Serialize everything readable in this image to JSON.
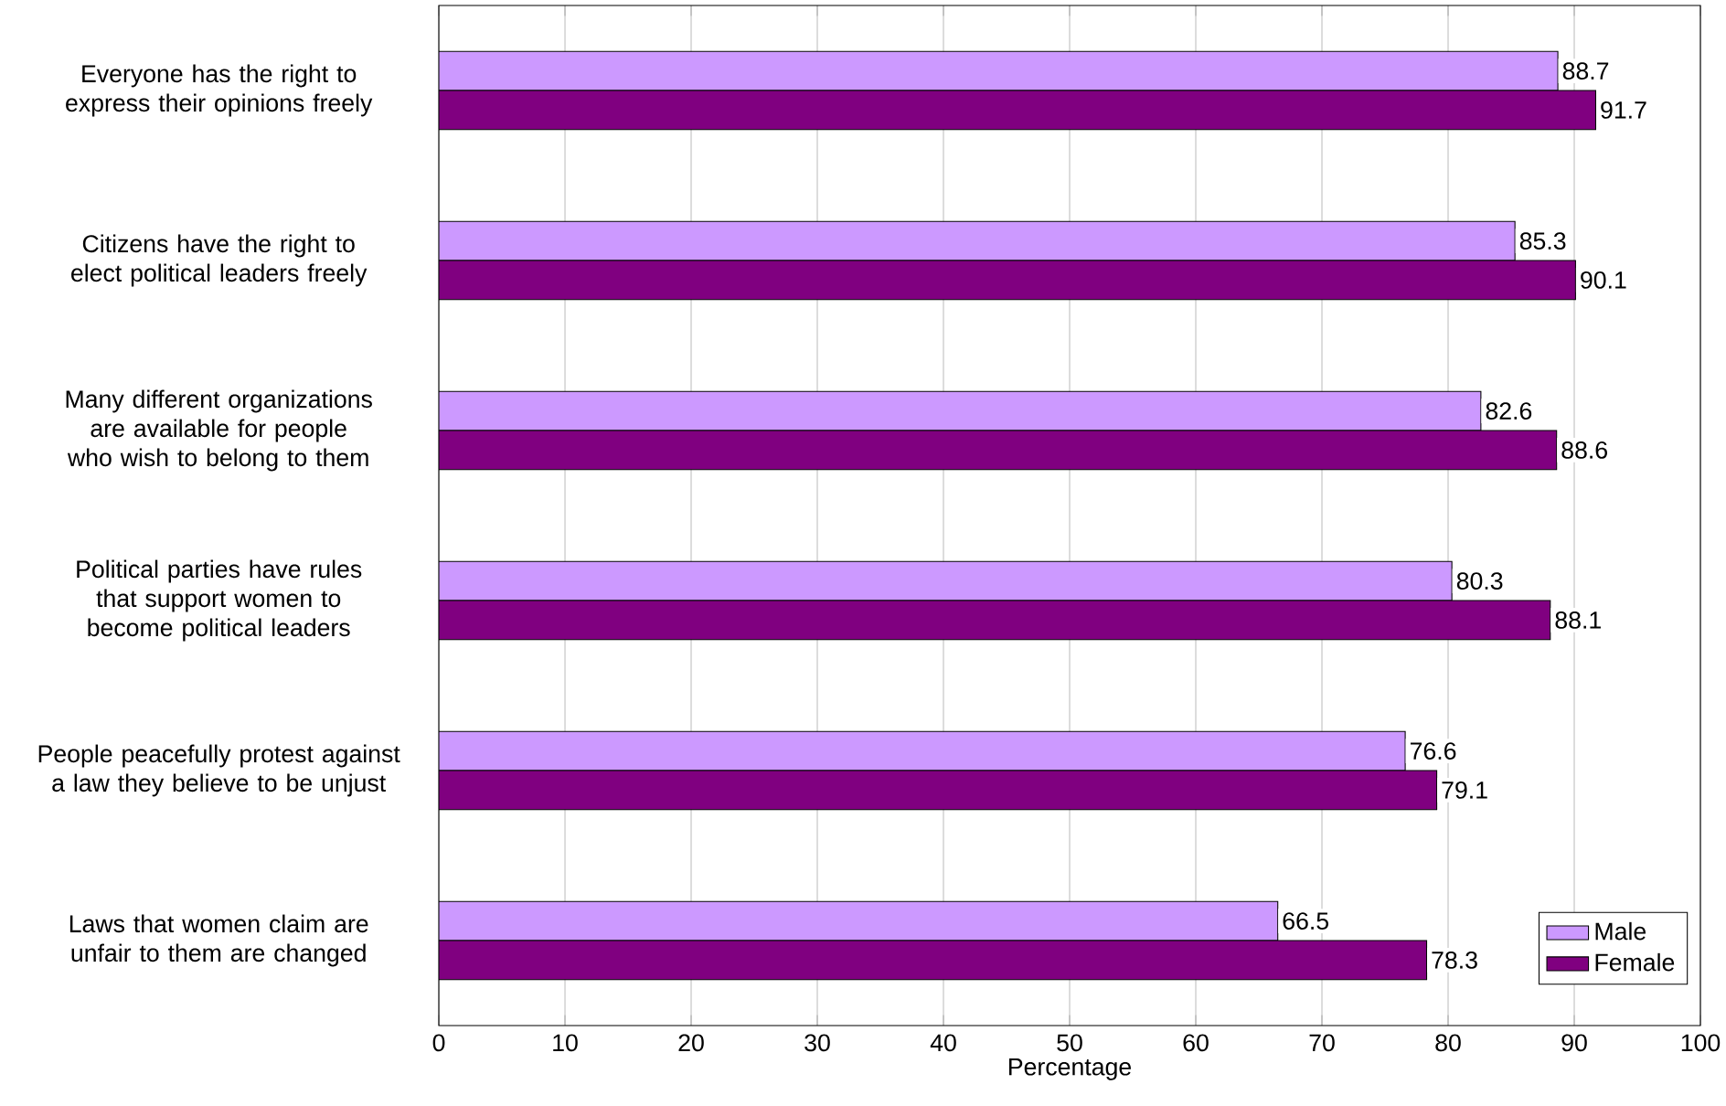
{
  "chart_data": {
    "type": "bar",
    "orientation": "horizontal",
    "xlabel": "Percentage",
    "categories": [
      "Everyone has the right to express their opinions freely",
      "Citizens have the right to elect political leaders freely",
      "Many different organizations are available for people who wish to belong to them",
      "Political parties have rules that support women to become political leaders",
      "People peacefully protest against a law they believe to be unjust",
      "Laws that women claim are unfair to them are changed"
    ],
    "series": [
      {
        "name": "Male",
        "color": "#cc99ff",
        "values": [
          88.7,
          85.3,
          82.6,
          80.3,
          76.6,
          66.5
        ]
      },
      {
        "name": "Female",
        "color": "#800080",
        "values": [
          91.7,
          90.1,
          88.6,
          88.1,
          79.1,
          78.3
        ]
      }
    ],
    "xlim": [
      0,
      100
    ],
    "xticks": [
      0,
      10,
      20,
      30,
      40,
      50,
      60,
      70,
      80,
      90,
      100
    ],
    "grid": "x",
    "legend": "bottom right",
    "data_labels": true
  }
}
